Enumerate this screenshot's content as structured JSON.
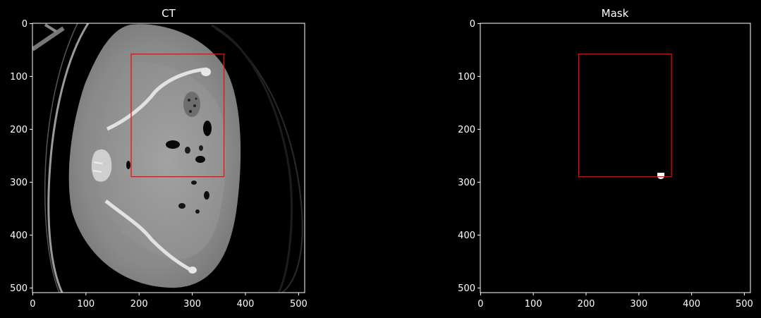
{
  "figure": {
    "background": "#000000",
    "axes_color": "#ffffff",
    "text_color": "#ffffff"
  },
  "chart_data": [
    {
      "type": "image",
      "title": "CT",
      "xlim": [
        0,
        512
      ],
      "ylim": [
        512,
        0
      ],
      "xticks": [
        0,
        100,
        200,
        300,
        400,
        500
      ],
      "yticks": [
        0,
        100,
        200,
        300,
        400,
        500
      ],
      "image_content": "axial CT slice of pelvis (grayscale)",
      "bbox": {
        "x0": 186,
        "y0": 60,
        "x1": 362,
        "y1": 291,
        "color": "#ff0000"
      }
    },
    {
      "type": "image",
      "title": "Mask",
      "xlim": [
        0,
        512
      ],
      "ylim": [
        512,
        0
      ],
      "xticks": [
        0,
        100,
        200,
        300,
        400,
        500
      ],
      "yticks": [
        0,
        100,
        200,
        300,
        400,
        500
      ],
      "image_content": "binary segmentation mask (black background, small white blob)",
      "bbox": {
        "x0": 186,
        "y0": 60,
        "x1": 362,
        "y1": 291,
        "color": "#ff0000"
      },
      "mask_blob": {
        "x": 341,
        "y": 288
      }
    }
  ]
}
